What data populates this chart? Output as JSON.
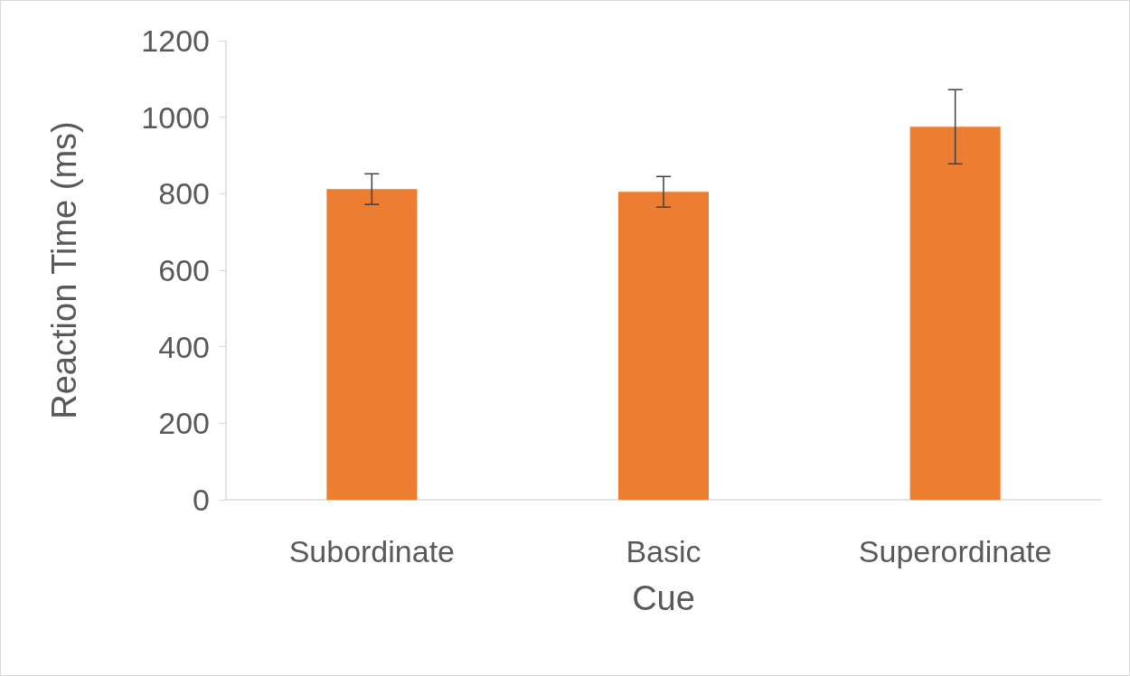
{
  "chart_data": {
    "type": "bar",
    "xlabel": "Cue",
    "ylabel": "Reaction Time (ms)",
    "categories": [
      "Subordinate",
      "Basic",
      "Superordinate"
    ],
    "values": [
      812,
      805,
      975
    ],
    "errors": [
      40,
      40,
      97
    ],
    "color": "#ed7d31",
    "ylim": [
      0,
      1200
    ],
    "yticks": [
      0,
      200,
      400,
      600,
      800,
      1000,
      1200
    ]
  }
}
